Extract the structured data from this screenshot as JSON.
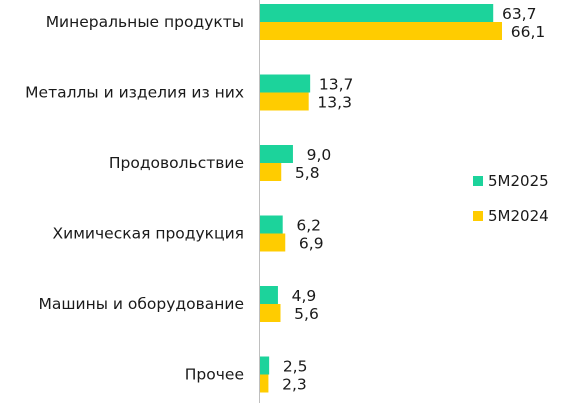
{
  "chart_data": {
    "type": "bar",
    "orientation": "horizontal",
    "categories": [
      "Минеральные продукты",
      "Металлы и изделия из них",
      "Продовольствие",
      "Химическая продукция",
      "Машины и оборудование",
      "Прочее"
    ],
    "series": [
      {
        "name": "5M2025",
        "color": "#1cd39b",
        "values": [
          63.7,
          13.7,
          9.0,
          6.2,
          4.9,
          2.5
        ],
        "labels": [
          "63,7",
          "13,7",
          "9,0",
          "6,2",
          "4,9",
          "2,5"
        ]
      },
      {
        "name": "5M2024",
        "color": "#ffcc00",
        "values": [
          66.1,
          13.3,
          5.8,
          6.9,
          5.6,
          2.3
        ],
        "labels": [
          "66,1",
          "13,3",
          "5,8",
          "6,9",
          "5,6",
          "2,3"
        ]
      }
    ],
    "xlim": [
      0,
      70
    ],
    "grid": false,
    "legend_position": "right"
  }
}
